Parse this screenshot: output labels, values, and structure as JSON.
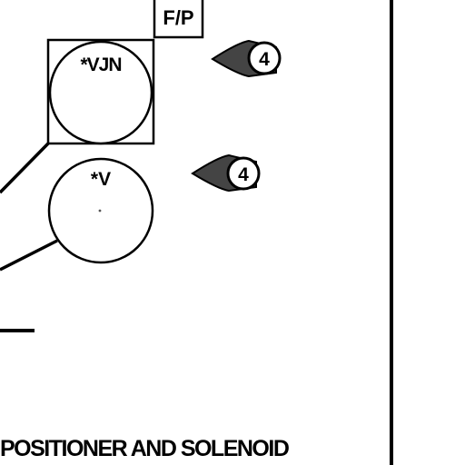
{
  "diagram": {
    "tag_box_label": "F/P",
    "instrument_1_label": "*VJN",
    "instrument_2_label": "*V",
    "callout_1_number": "4",
    "callout_2_number": "4",
    "caption": "POSITIONER AND SOLENOID"
  },
  "colors": {
    "ink": "#000000",
    "paper": "#ffffff",
    "callout_fill": "#444444"
  }
}
